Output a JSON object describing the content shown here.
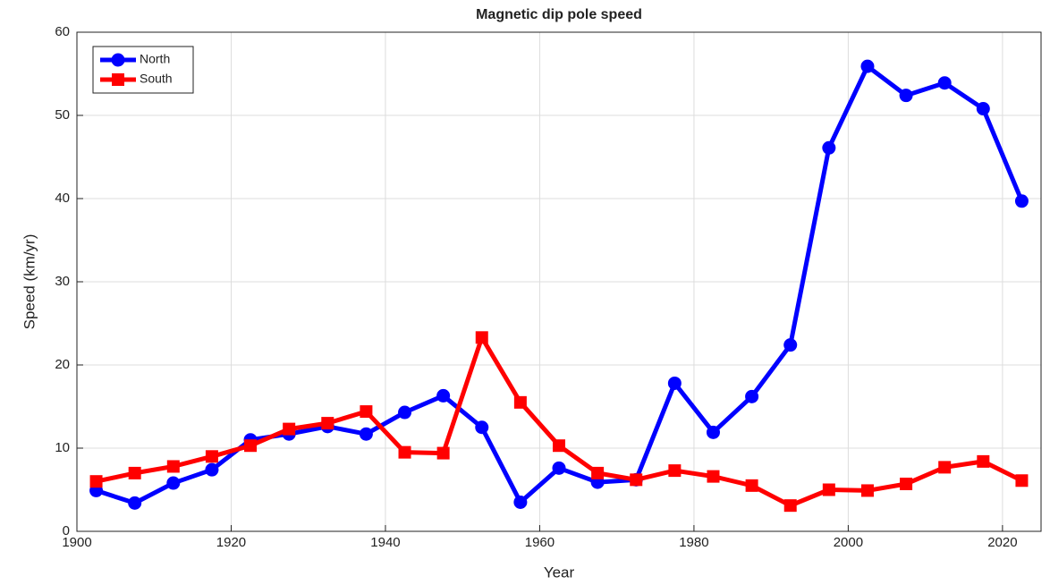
{
  "chart_data": {
    "type": "line",
    "title": "Magnetic dip pole speed",
    "x_label": "Year",
    "y_label": "Speed (km/yr)",
    "x": [
      1902.5,
      1907.5,
      1912.5,
      1917.5,
      1922.5,
      1927.5,
      1932.5,
      1937.5,
      1942.5,
      1947.5,
      1952.5,
      1957.5,
      1962.5,
      1967.5,
      1972.5,
      1977.5,
      1982.5,
      1987.5,
      1992.5,
      1997.5,
      2002.5,
      2007.5,
      2012.5,
      2017.5,
      2022.5
    ],
    "series": [
      {
        "name": "North",
        "color": "#0000ff",
        "marker": "circle",
        "values": [
          4.9,
          3.4,
          5.8,
          7.4,
          11.0,
          11.7,
          12.6,
          11.7,
          14.3,
          16.3,
          12.5,
          3.5,
          7.6,
          5.9,
          6.2,
          17.8,
          11.9,
          16.2,
          22.4,
          46.1,
          55.9,
          52.4,
          53.9,
          50.8,
          39.7
        ]
      },
      {
        "name": "South",
        "color": "#ff0000",
        "marker": "square",
        "values": [
          6.0,
          7.0,
          7.8,
          9.0,
          10.3,
          12.3,
          13.0,
          14.4,
          9.5,
          9.4,
          23.3,
          15.5,
          10.3,
          7.0,
          6.2,
          7.3,
          6.6,
          5.5,
          3.1,
          5.0,
          4.9,
          5.7,
          7.7,
          8.4,
          6.1
        ]
      }
    ],
    "xlim": [
      1900,
      2025
    ],
    "ylim": [
      0,
      60
    ],
    "xticks": [
      1900,
      1920,
      1940,
      1960,
      1980,
      2000,
      2020
    ],
    "yticks": [
      0,
      10,
      20,
      30,
      40,
      50,
      60
    ],
    "grid": true,
    "legend": "upper-left"
  }
}
